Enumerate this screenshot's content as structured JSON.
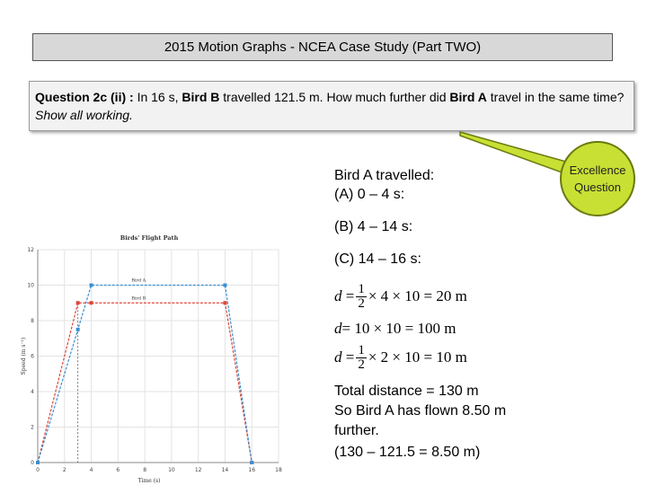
{
  "header": {
    "title": "2015 Motion Graphs - NCEA Case Study (Part TWO)"
  },
  "question": {
    "label": "Question 2c (ii) :",
    "text_a": " In 16 s, ",
    "bird_b": "Bird B",
    "text_b": " travelled 121.5 m. How much further did ",
    "bird_a": "Bird A",
    "text_c": " travel in the same time? ",
    "instruction": "Show all working."
  },
  "callout": {
    "line1": "Excellence",
    "line2": "Question",
    "color": "#c8e034"
  },
  "working": {
    "heading1": "Bird A travelled:",
    "heading2": "(A) 0 – 4 s:",
    "part_b": "(B) 4 – 14 s:",
    "part_c": "(C) 14 – 16 s:",
    "formula_a": {
      "var": "d",
      "num": "1",
      "den": "2",
      "rest": "× 4 × 10 = 20 m"
    },
    "formula_b": {
      "var": "d",
      "rest": "= 10 × 10 = 100 m"
    },
    "formula_c": {
      "var": "d",
      "num": "1",
      "den": "2",
      "rest": "× 2 × 10 = 10 m"
    },
    "total": "Total distance  = 130 m",
    "conclusion1": "So Bird A has flown 8.50 m",
    "conclusion2": "further.",
    "check": "(130 – 121.5 = 8.50 m)"
  },
  "chart_data": {
    "type": "line",
    "title": "Birds' Flight Path",
    "xlabel": "Time (s)",
    "ylabel": "Speed (m s⁻¹)",
    "xlim": [
      0,
      18
    ],
    "ylim": [
      0,
      12
    ],
    "xticks": [
      0,
      2,
      4,
      6,
      8,
      10,
      12,
      14,
      16,
      18
    ],
    "yticks": [
      0,
      2,
      4,
      6,
      8,
      10,
      12
    ],
    "grid": true,
    "series": [
      {
        "name": "Bird A",
        "color": "#3a8fd0",
        "x": [
          0,
          3,
          4,
          14,
          16
        ],
        "y": [
          0,
          7.5,
          10,
          10,
          0
        ]
      },
      {
        "name": "Bird B",
        "color": "#e0463a",
        "x": [
          0,
          3,
          4,
          14,
          16
        ],
        "y": [
          0,
          9,
          9,
          9,
          0
        ]
      }
    ],
    "reference_line_x": 3
  }
}
